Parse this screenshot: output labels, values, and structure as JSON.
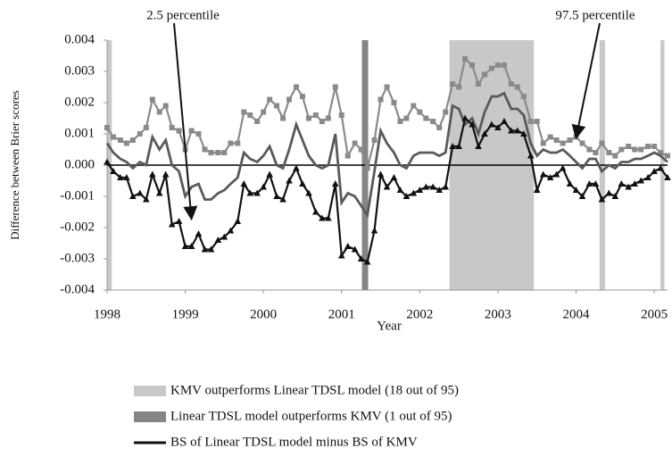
{
  "chart_data": {
    "type": "line",
    "ylabel": "Difference between Brier scores",
    "xlabel": "Year",
    "xlim": [
      1998,
      2005.17
    ],
    "xticks": [
      1998,
      1999,
      2000,
      2001,
      2002,
      2003,
      2004,
      2005
    ],
    "ylim": [
      -0.004,
      0.004
    ],
    "yticks": [
      -0.004,
      -0.003,
      -0.002,
      -0.001,
      {
        "value": 0,
        "label": "0.000"
      },
      0.001,
      0.002,
      0.003,
      0.004
    ],
    "zero_line": true,
    "x": [
      1998,
      1998.08,
      1998.17,
      1998.25,
      1998.33,
      1998.42,
      1998.5,
      1998.58,
      1998.67,
      1998.75,
      1998.83,
      1998.92,
      1999,
      1999.08,
      1999.17,
      1999.25,
      1999.33,
      1999.42,
      1999.5,
      1999.58,
      1999.67,
      1999.75,
      1999.83,
      1999.92,
      2000,
      2000.08,
      2000.17,
      2000.25,
      2000.33,
      2000.42,
      2000.5,
      2000.58,
      2000.67,
      2000.75,
      2000.83,
      2000.92,
      2001,
      2001.08,
      2001.17,
      2001.25,
      2001.33,
      2001.42,
      2001.5,
      2001.58,
      2001.67,
      2001.75,
      2001.83,
      2001.92,
      2002,
      2002.08,
      2002.17,
      2002.25,
      2002.33,
      2002.42,
      2002.5,
      2002.58,
      2002.67,
      2002.75,
      2002.83,
      2002.92,
      2003,
      2003.08,
      2003.17,
      2003.25,
      2003.33,
      2003.42,
      2003.5,
      2003.58,
      2003.67,
      2003.75,
      2003.83,
      2003.92,
      2004,
      2004.08,
      2004.17,
      2004.25,
      2004.33,
      2004.42,
      2004.5,
      2004.58,
      2004.67,
      2004.75,
      2004.83,
      2004.92,
      2005,
      2005.08,
      2005.17
    ],
    "regions": [
      {
        "label": "KMV outperforms Linear TDSL model (18 out of 95)",
        "color": "#c8c8c8",
        "spans": [
          [
            1998,
            1998.06
          ],
          [
            2002.38,
            2003.46
          ],
          [
            2004.3,
            2004.37
          ],
          [
            2005.08,
            2005.13
          ]
        ]
      },
      {
        "label": "Linear TDSL model outperforms KMV (1 out of 95)",
        "color": "#858585",
        "spans": [
          [
            2001.26,
            2001.34
          ]
        ]
      }
    ],
    "series": [
      {
        "name": "97.5 percentile",
        "color": "#8a8a8a",
        "marker": "square",
        "in_legend": false,
        "values": [
          0.0012,
          0.0009,
          0.0008,
          0.0007,
          0.0008,
          0.001,
          0.0012,
          0.0021,
          0.0017,
          0.0019,
          0.0012,
          0.0011,
          0.0005,
          0.0011,
          0.001,
          0.0005,
          0.0004,
          0.0004,
          0.0004,
          0.0007,
          0.0007,
          0.0017,
          0.0016,
          0.0014,
          0.0017,
          0.0021,
          0.0019,
          0.0015,
          0.0021,
          0.0025,
          0.0022,
          0.0015,
          0.0016,
          0.0014,
          0.0015,
          0.0025,
          0.0016,
          0.0003,
          0.0007,
          0.0005,
          -0.0001,
          0.0008,
          0.0021,
          0.0025,
          0.002,
          0.0014,
          0.0015,
          0.0019,
          0.0017,
          0.0015,
          0.0014,
          0.0012,
          0.0017,
          0.0026,
          0.0025,
          0.0034,
          0.0032,
          0.0026,
          0.0029,
          0.0031,
          0.0032,
          0.0032,
          0.0026,
          0.0025,
          0.0022,
          0.0014,
          0.0014,
          0.0007,
          0.0009,
          0.0008,
          0.0007,
          0.0008,
          0.0009,
          0.0007,
          0.0005,
          0.0004,
          0.0007,
          0.0004,
          0.0003,
          0.0005,
          0.0006,
          0.0005,
          0.0005,
          0.0006,
          0.0006,
          0.0004,
          0.0003
        ]
      },
      {
        "name": "BS of Linear TDSL model minus BS of KMV",
        "color": "#5a5a5a",
        "marker": null,
        "in_legend": true,
        "values": [
          0.0007,
          0.0004,
          0.0002,
          0.0001,
          -0.0001,
          0.0001,
          0,
          0.0009,
          0.0005,
          0.0008,
          0,
          -0.0002,
          -0.001,
          -0.0007,
          -0.0006,
          -0.0011,
          -0.0011,
          -0.0009,
          -0.0008,
          -0.0006,
          -0.0004,
          0.0004,
          0.0002,
          0.0001,
          0.0003,
          0.0006,
          0,
          -0.0001,
          0.0005,
          0.0013,
          0.0008,
          0.0003,
          0,
          -0.0001,
          0,
          0.001,
          -0.0012,
          -0.0009,
          -0.001,
          -0.0013,
          -0.0016,
          -0.0002,
          0.0011,
          0.0007,
          0.0004,
          0,
          -0.0001,
          0.0003,
          0.0004,
          0.0004,
          0.0004,
          0.0003,
          0.0004,
          0.0019,
          0.0018,
          0.0013,
          0.0015,
          0.001,
          0.0017,
          0.0022,
          0.0022,
          0.0023,
          0.0018,
          0.0018,
          0.0016,
          0.0007,
          0.0003,
          0.0005,
          0.0004,
          0.0004,
          0.0005,
          0.0003,
          0.0001,
          -0.0001,
          0.0002,
          0.0002,
          -0.0002,
          0,
          -0.0001,
          0.0001,
          0.0001,
          0.0002,
          0.0002,
          0.0003,
          0.0004,
          0.0003,
          0.0001
        ]
      },
      {
        "name": "2.5 percentile",
        "color": "#111111",
        "marker": "triangle",
        "in_legend": false,
        "values": [
          0.0001,
          -0.0002,
          -0.0004,
          -0.0004,
          -0.001,
          -0.0009,
          -0.0011,
          -0.0003,
          -0.0009,
          -0.0003,
          -0.0019,
          -0.0018,
          -0.0026,
          -0.0026,
          -0.0022,
          -0.0027,
          -0.0027,
          -0.0024,
          -0.0023,
          -0.0021,
          -0.0018,
          -0.0006,
          -0.0009,
          -0.0009,
          -0.0007,
          -0.0003,
          -0.001,
          -0.0011,
          -0.0005,
          -0.0001,
          -0.0006,
          -0.0009,
          -0.0015,
          -0.0017,
          -0.0017,
          -0.0006,
          -0.0029,
          -0.0026,
          -0.0027,
          -0.003,
          -0.0031,
          -0.0021,
          -0.0003,
          -0.0007,
          -0.0004,
          -0.0008,
          -0.001,
          -0.0009,
          -0.0008,
          -0.0007,
          -0.0007,
          -0.0008,
          -0.0007,
          0.0006,
          0.0006,
          0.0015,
          0.0013,
          0.0006,
          0.001,
          0.0013,
          0.0012,
          0.0014,
          0.0011,
          0.0011,
          0.001,
          0.0003,
          -0.0008,
          -0.0003,
          -0.0004,
          -0.0003,
          -0.0001,
          -0.0006,
          -0.0008,
          -0.001,
          -0.0006,
          -0.0006,
          -0.0011,
          -0.0009,
          -0.001,
          -0.0006,
          -0.0007,
          -0.0006,
          -0.0005,
          -0.0004,
          -0.0002,
          -0.0001,
          -0.0004
        ]
      }
    ],
    "annotations": [
      {
        "text": "2.5 percentile",
        "x": 1999.08,
        "y": -0.0019
      },
      {
        "text": "97.5 percentile",
        "x": 2004.0,
        "y": 0.0007
      }
    ]
  }
}
